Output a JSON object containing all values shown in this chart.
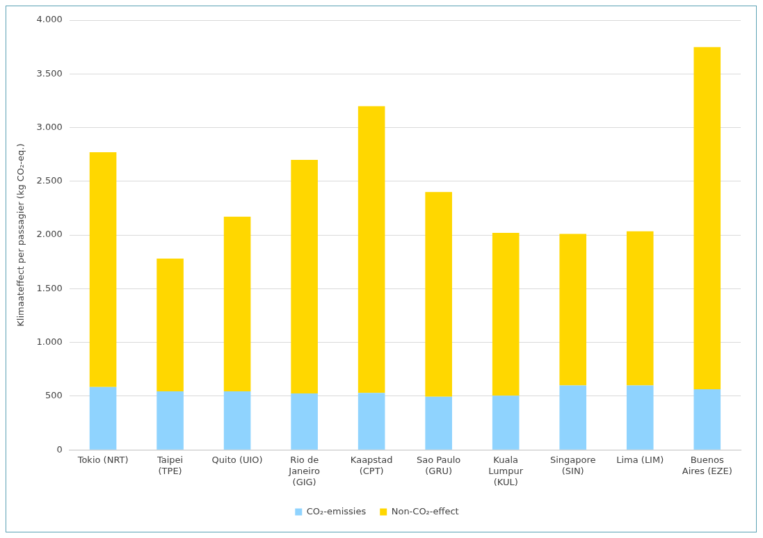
{
  "chart_data": {
    "type": "bar",
    "stacked": true,
    "ylabel": "Klimaateffect per passagier (kg CO₂-eq.)",
    "categories": [
      "Tokio (NRT)",
      "Taipei (TPE)",
      "Quito (UIO)",
      "Rio de Janeiro (GIG)",
      "Kaapstad (CPT)",
      "Sao Paulo (GRU)",
      "Kuala Lumpur (KUL)",
      "Singapore (SIN)",
      "Lima (LIM)",
      "Buenos Aires (EZE)"
    ],
    "series": [
      {
        "name": "CO₂-emissies",
        "color": "#8fd3fe",
        "values": [
          585,
          545,
          545,
          525,
          530,
          495,
          505,
          600,
          600,
          565
        ]
      },
      {
        "name": "Non-CO₂-effect",
        "color": "#ffd700",
        "values": [
          2185,
          1235,
          1625,
          2175,
          2670,
          1905,
          1515,
          1410,
          1435,
          3185
        ]
      }
    ],
    "ylim": [
      0,
      4000
    ],
    "yticks": [
      {
        "value": 0,
        "label": "0"
      },
      {
        "value": 500,
        "label": "500"
      },
      {
        "value": 1000,
        "label": "1.000"
      },
      {
        "value": 1500,
        "label": "1.500"
      },
      {
        "value": 2000,
        "label": "2.000"
      },
      {
        "value": 2500,
        "label": "2.500"
      },
      {
        "value": 3000,
        "label": "3.000"
      },
      {
        "value": 3500,
        "label": "3.500"
      },
      {
        "value": 4000,
        "label": "4.000"
      }
    ],
    "grid": "y",
    "legend": "bottom"
  }
}
